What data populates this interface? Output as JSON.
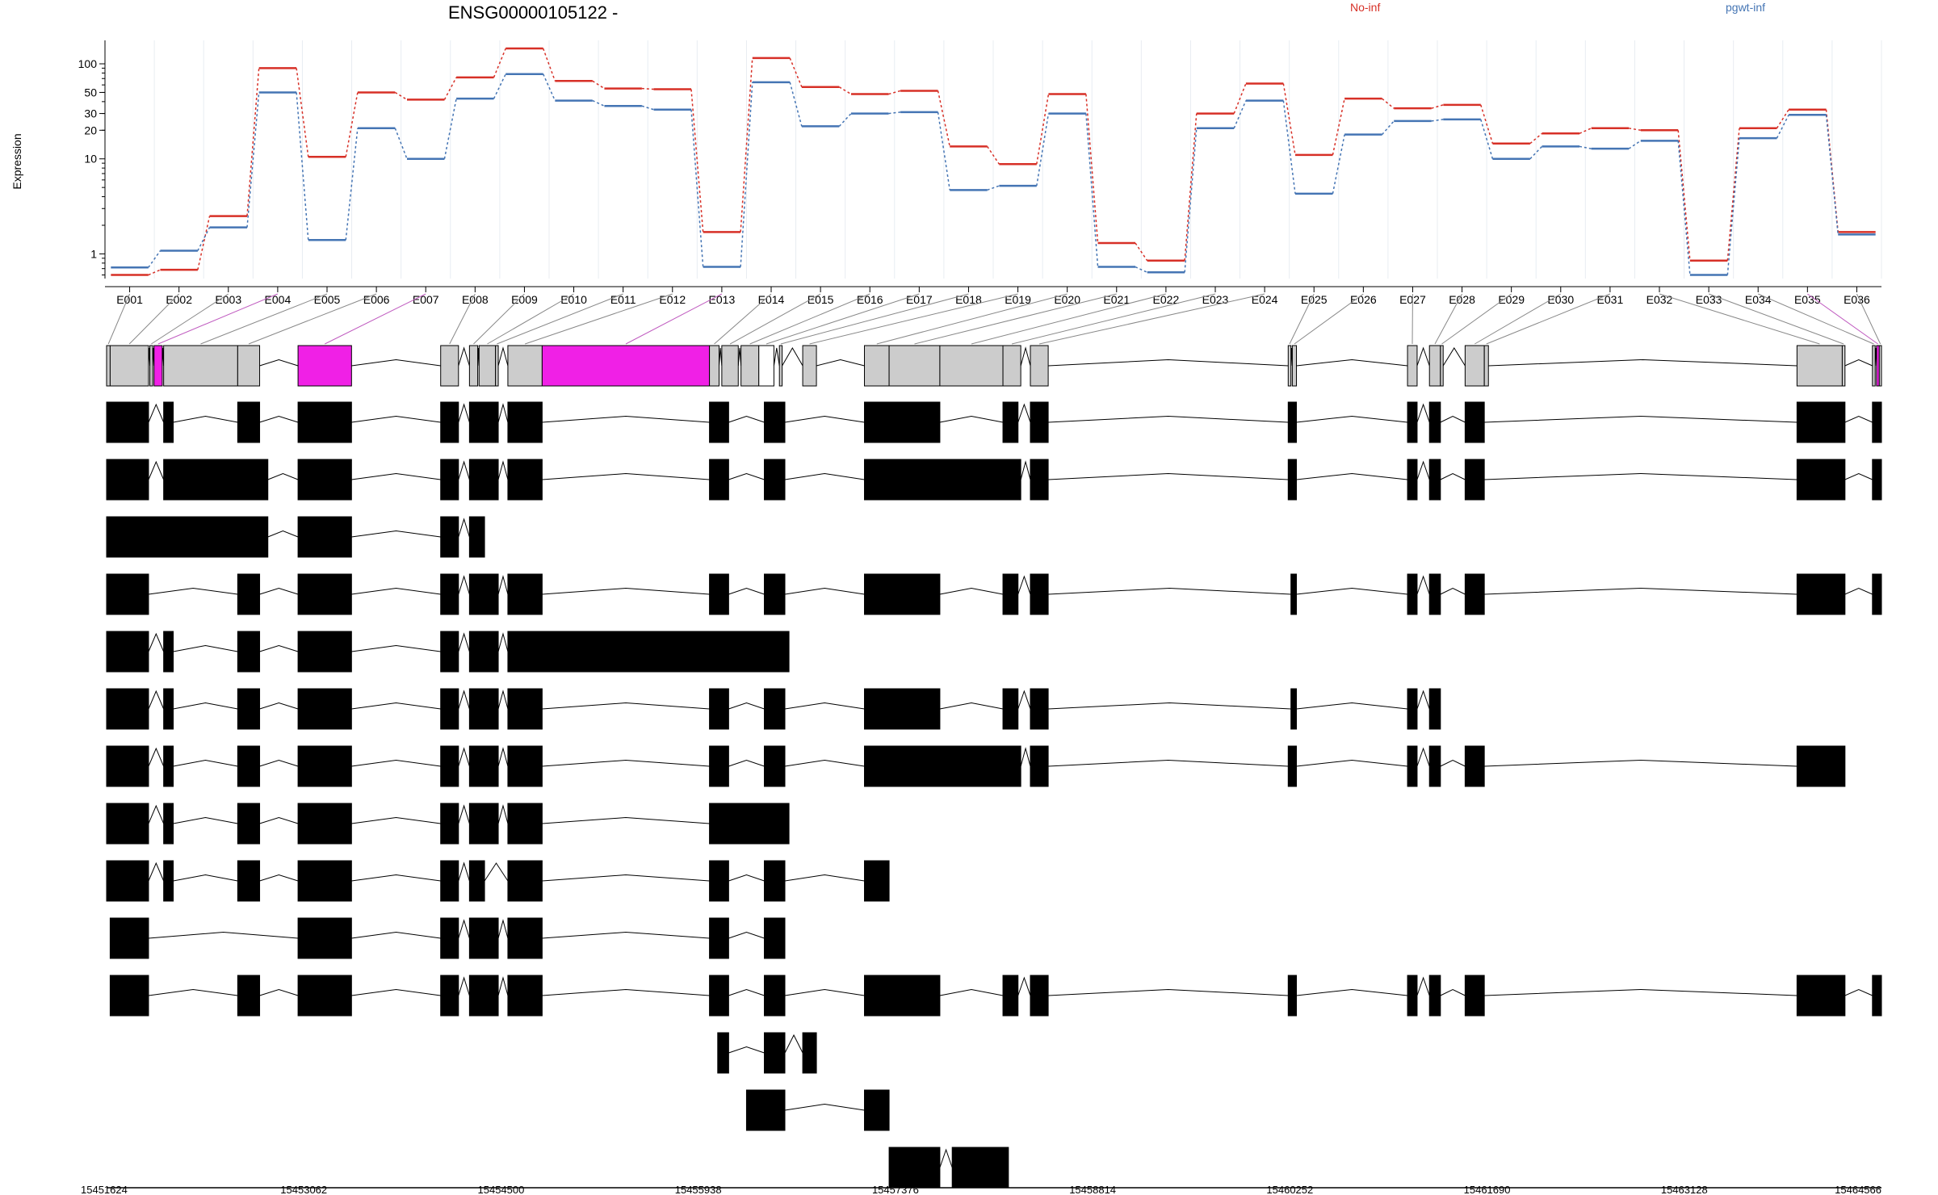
{
  "chart_data": {
    "type": "line",
    "title": "ENSG00000105122 -",
    "ylabel": "Expression",
    "xlabel": "",
    "y_scale": "log",
    "ylim": [
      0.55,
      160
    ],
    "grid": true,
    "colors": {
      "No-inf": "#d73027",
      "pgwt-inf": "#4575b4",
      "highlight": "#f020e6",
      "grey_exon": "#cccccc",
      "black_exon": "#000000"
    },
    "legend": [
      "No-inf",
      "pgwt-inf"
    ],
    "y_ticks": [
      1,
      10,
      20,
      30,
      50,
      100
    ],
    "y_tick_labels": [
      "1",
      "10",
      "20",
      "30",
      "50",
      "100"
    ],
    "categories": [
      "E001",
      "E002",
      "E003",
      "E004",
      "E005",
      "E006",
      "E007",
      "E008",
      "E009",
      "E010",
      "E011",
      "E012",
      "E013",
      "E014",
      "E015",
      "E016",
      "E017",
      "E018",
      "E019",
      "E020",
      "E021",
      "E022",
      "E023",
      "E024",
      "E025",
      "E026",
      "E027",
      "E028",
      "E029",
      "E030",
      "E031",
      "E032",
      "E033",
      "E034",
      "E035",
      "E036"
    ],
    "series": [
      {
        "name": "No-inf",
        "color": "#d73027",
        "values": [
          0.6,
          0.68,
          2.5,
          90,
          10.5,
          50,
          42,
          72,
          145,
          66,
          55,
          54,
          1.7,
          115,
          57,
          48,
          52,
          13.5,
          8.8,
          48,
          1.3,
          0.85,
          30,
          62,
          11,
          43,
          34,
          37,
          14.5,
          18.5,
          21,
          20,
          0.85,
          21,
          33,
          1.7
        ]
      },
      {
        "name": "pgwt-inf",
        "color": "#4575b4",
        "values": [
          0.72,
          1.08,
          1.9,
          50,
          1.4,
          21,
          10,
          43,
          78,
          41,
          36,
          33,
          0.73,
          64,
          22,
          30,
          31,
          4.7,
          5.2,
          30,
          0.73,
          0.64,
          21,
          41,
          4.3,
          18,
          25,
          26,
          10,
          13.5,
          12.8,
          15.5,
          0.6,
          16.5,
          29,
          1.6
        ]
      }
    ],
    "gene_axis": {
      "start": 15451624,
      "end": 15464566,
      "tick_labels": [
        "15451624",
        "15453062",
        "15454500",
        "15455938",
        "15457376",
        "15458814",
        "15460252",
        "15461690",
        "15463128",
        "15464566"
      ]
    },
    "exon_bins": [
      [
        15451624,
        15451650
      ],
      [
        15451650,
        15451930
      ],
      [
        15451940,
        15451960
      ],
      [
        15451970,
        15452030
      ],
      [
        15452040,
        15452580
      ],
      [
        15452580,
        15452740
      ],
      [
        15453020,
        15453410
      ],
      [
        15454060,
        15454190
      ],
      [
        15454270,
        15454330
      ],
      [
        15454340,
        15454460
      ],
      [
        15454460,
        15454480
      ],
      [
        15454550,
        15454800
      ],
      [
        15454800,
        15456020
      ],
      [
        15456020,
        15456090
      ],
      [
        15456110,
        15456230
      ],
      [
        15456250,
        15456380
      ],
      [
        15456380,
        15456490
      ],
      [
        15456530,
        15456550
      ],
      [
        15456700,
        15456800
      ],
      [
        15457150,
        15457330
      ],
      [
        15457330,
        15457700
      ],
      [
        15457700,
        15458160
      ],
      [
        15458160,
        15458290
      ],
      [
        15458360,
        15458490
      ],
      [
        15460240,
        15460260
      ],
      [
        15460270,
        15460300
      ],
      [
        15461110,
        15461180
      ],
      [
        15461270,
        15461350
      ],
      [
        15461350,
        15461370
      ],
      [
        15461530,
        15461670
      ],
      [
        15461670,
        15461700
      ],
      [
        15463950,
        15464280
      ],
      [
        15464280,
        15464300
      ],
      [
        15464500,
        15464520
      ],
      [
        15464530,
        15464550
      ],
      [
        15464550,
        15464566
      ]
    ],
    "highlighted_bins": [
      "E004",
      "E007",
      "E013",
      "E035"
    ],
    "hollow_bins": [
      "E017"
    ],
    "transcripts": [
      [
        [
          15451624,
          15451930
        ],
        [
          15452040,
          15452110
        ],
        [
          15452580,
          15452740
        ],
        [
          15453020,
          15453410
        ],
        [
          15454060,
          15454190
        ],
        [
          15454270,
          15454480
        ],
        [
          15454550,
          15454800
        ],
        [
          15456020,
          15456160
        ],
        [
          15456420,
          15456570
        ],
        [
          15457150,
          15457700
        ],
        [
          15458160,
          15458270
        ],
        [
          15458360,
          15458490
        ],
        [
          15460240,
          15460300
        ],
        [
          15461110,
          15461180
        ],
        [
          15461270,
          15461350
        ],
        [
          15461530,
          15461670
        ],
        [
          15463950,
          15464300
        ],
        [
          15464500,
          15464566
        ]
      ],
      [
        [
          15451624,
          15451930
        ],
        [
          15452040,
          15452800
        ],
        [
          15453020,
          15453410
        ],
        [
          15454060,
          15454190
        ],
        [
          15454270,
          15454480
        ],
        [
          15454550,
          15454800
        ],
        [
          15456020,
          15456160
        ],
        [
          15456420,
          15456570
        ],
        [
          15457150,
          15458290
        ],
        [
          15458360,
          15458490
        ],
        [
          15460240,
          15460300
        ],
        [
          15461110,
          15461180
        ],
        [
          15461270,
          15461350
        ],
        [
          15461530,
          15461670
        ],
        [
          15463950,
          15464300
        ],
        [
          15464500,
          15464566
        ]
      ],
      [
        [
          15451624,
          15452800
        ],
        [
          15453020,
          15453410
        ],
        [
          15454060,
          15454190
        ],
        [
          15454270,
          15454380
        ]
      ],
      [
        [
          15451624,
          15451930
        ],
        [
          15452580,
          15452740
        ],
        [
          15453020,
          15453410
        ],
        [
          15454060,
          15454190
        ],
        [
          15454270,
          15454480
        ],
        [
          15454550,
          15454800
        ],
        [
          15456020,
          15456160
        ],
        [
          15456420,
          15456570
        ],
        [
          15457150,
          15457700
        ],
        [
          15458160,
          15458270
        ],
        [
          15458360,
          15458490
        ],
        [
          15460260,
          15460300
        ],
        [
          15461110,
          15461180
        ],
        [
          15461270,
          15461350
        ],
        [
          15461530,
          15461670
        ],
        [
          15463950,
          15464300
        ],
        [
          15464500,
          15464566
        ]
      ],
      [
        [
          15451624,
          15451930
        ],
        [
          15452040,
          15452110
        ],
        [
          15452580,
          15452740
        ],
        [
          15453020,
          15453410
        ],
        [
          15454060,
          15454190
        ],
        [
          15454270,
          15454480
        ],
        [
          15454550,
          15456600
        ]
      ],
      [
        [
          15451624,
          15451930
        ],
        [
          15452040,
          15452110
        ],
        [
          15452580,
          15452740
        ],
        [
          15453020,
          15453410
        ],
        [
          15454060,
          15454190
        ],
        [
          15454270,
          15454480
        ],
        [
          15454550,
          15454800
        ],
        [
          15456020,
          15456160
        ],
        [
          15456420,
          15456570
        ],
        [
          15457150,
          15457700
        ],
        [
          15458160,
          15458270
        ],
        [
          15458360,
          15458490
        ],
        [
          15460260,
          15460300
        ],
        [
          15461110,
          15461180
        ],
        [
          15461270,
          15461350
        ]
      ],
      [
        [
          15451624,
          15451930
        ],
        [
          15452040,
          15452110
        ],
        [
          15452580,
          15452740
        ],
        [
          15453020,
          15453410
        ],
        [
          15454060,
          15454190
        ],
        [
          15454270,
          15454480
        ],
        [
          15454550,
          15454800
        ],
        [
          15456020,
          15456160
        ],
        [
          15456420,
          15456570
        ],
        [
          15457150,
          15458290
        ],
        [
          15458360,
          15458490
        ],
        [
          15460240,
          15460300
        ],
        [
          15461110,
          15461180
        ],
        [
          15461270,
          15461350
        ],
        [
          15461530,
          15461670
        ],
        [
          15463950,
          15464300
        ]
      ],
      [
        [
          15451624,
          15451930
        ],
        [
          15452040,
          15452110
        ],
        [
          15452580,
          15452740
        ],
        [
          15453020,
          15453410
        ],
        [
          15454060,
          15454190
        ],
        [
          15454270,
          15454480
        ],
        [
          15454550,
          15454800
        ],
        [
          15456020,
          15456600
        ]
      ],
      [
        [
          15451624,
          15451930
        ],
        [
          15452040,
          15452110
        ],
        [
          15452580,
          15452740
        ],
        [
          15453020,
          15453410
        ],
        [
          15454060,
          15454190
        ],
        [
          15454270,
          15454380
        ],
        [
          15454550,
          15454800
        ],
        [
          15456020,
          15456160
        ],
        [
          15456420,
          15456570
        ],
        [
          15457150,
          15457330
        ]
      ],
      [
        [
          15451650,
          15451930
        ],
        [
          15453020,
          15453410
        ],
        [
          15454060,
          15454190
        ],
        [
          15454270,
          15454480
        ],
        [
          15454550,
          15454800
        ],
        [
          15456020,
          15456160
        ],
        [
          15456420,
          15456570
        ]
      ],
      [
        [
          15451650,
          15451930
        ],
        [
          15452580,
          15452740
        ],
        [
          15453020,
          15453410
        ],
        [
          15454060,
          15454190
        ],
        [
          15454270,
          15454480
        ],
        [
          15454550,
          15454800
        ],
        [
          15456020,
          15456160
        ],
        [
          15456420,
          15456570
        ],
        [
          15457150,
          15457700
        ],
        [
          15458160,
          15458270
        ],
        [
          15458360,
          15458490
        ],
        [
          15460240,
          15460300
        ],
        [
          15461110,
          15461180
        ],
        [
          15461270,
          15461350
        ],
        [
          15461530,
          15461670
        ],
        [
          15463950,
          15464300
        ],
        [
          15464500,
          15464566
        ]
      ],
      [
        [
          15456080,
          15456160
        ],
        [
          15456420,
          15456570
        ],
        [
          15456700,
          15456800
        ]
      ],
      [
        [
          15456290,
          15456570
        ],
        [
          15457150,
          15457330
        ]
      ],
      [
        [
          15457330,
          15457700
        ],
        [
          15457790,
          15458200
        ]
      ]
    ]
  }
}
